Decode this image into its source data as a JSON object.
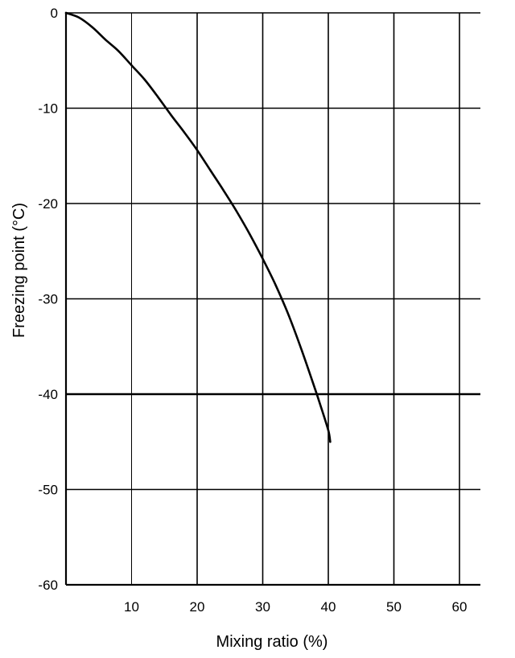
{
  "chart_data": {
    "type": "line",
    "title": "",
    "xlabel": "Mixing ratio (%)",
    "ylabel": "Freezing point  (°C)",
    "xlim": [
      0,
      63
    ],
    "ylim": [
      -60,
      0
    ],
    "xticks": [
      10,
      20,
      30,
      40,
      50,
      60
    ],
    "yticks": [
      0,
      -10,
      -20,
      -30,
      -40,
      -50,
      -60
    ],
    "xtick_labels": [
      "10",
      "20",
      "30",
      "40",
      "50",
      "60"
    ],
    "ytick_labels": [
      "0",
      "-10",
      "-20",
      "-30",
      "-40",
      "-50",
      "-60"
    ],
    "grid": true,
    "legend": "none",
    "series": [
      {
        "x": [
          0,
          2,
          4,
          6,
          8,
          10,
          12,
          14,
          16,
          18,
          20,
          22,
          24,
          26,
          28,
          30,
          32,
          34,
          36,
          38,
          39,
          40,
          40.3
        ],
        "y": [
          0,
          -0.5,
          -1.5,
          -2.8,
          -4.0,
          -5.5,
          -7.0,
          -8.8,
          -10.7,
          -12.5,
          -14.4,
          -16.5,
          -18.6,
          -20.8,
          -23.2,
          -25.8,
          -28.6,
          -31.8,
          -35.5,
          -39.5,
          -41.6,
          -43.8,
          -45.0
        ]
      }
    ],
    "colors": {
      "line": "#000000",
      "grid": "#000000",
      "background": "#ffffff"
    }
  }
}
